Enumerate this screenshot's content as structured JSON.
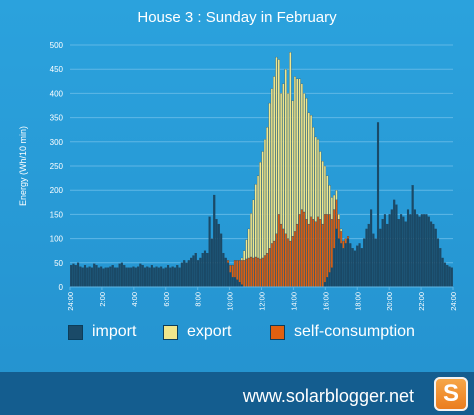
{
  "colors": {
    "background": "#2694d2",
    "import": "#1a4a68",
    "export": "#f0e68c",
    "self_consumption": "#e06010",
    "grid": "#5fb7e6",
    "text": "#ffffff"
  },
  "legend": {
    "import_label": "import",
    "export_label": "export",
    "self_label": "self-consumption"
  },
  "footer": {
    "site": "www.solarblogger.net",
    "logo_letter": "S"
  },
  "chart_data": {
    "type": "bar",
    "stacked": true,
    "title": "House 3 : Sunday  in February",
    "xlabel": "",
    "ylabel": "Energy (Wh/10 min)",
    "ylim": [
      0,
      500
    ],
    "yticks": [
      0,
      50,
      100,
      150,
      200,
      250,
      300,
      350,
      400,
      450,
      500
    ],
    "xticks": [
      "24:00",
      "2:00",
      "4:00",
      "6:00",
      "8:00",
      "10:00",
      "12:00",
      "14:00",
      "16:00",
      "18:00",
      "20:00",
      "22:00",
      "24:00"
    ],
    "grid": true,
    "legend_position": "bottom",
    "interval_minutes": 10,
    "series": [
      {
        "name": "import",
        "values": [
          45,
          48,
          45,
          50,
          42,
          40,
          45,
          40,
          42,
          40,
          48,
          45,
          40,
          42,
          38,
          40,
          40,
          42,
          45,
          40,
          40,
          48,
          50,
          45,
          40,
          40,
          40,
          42,
          40,
          42,
          48,
          45,
          40,
          42,
          40,
          45,
          40,
          42,
          40,
          42,
          38,
          40,
          45,
          40,
          42,
          40,
          45,
          40,
          50,
          55,
          50,
          55,
          60,
          65,
          70,
          55,
          60,
          70,
          75,
          70,
          145,
          100,
          190,
          140,
          130,
          110,
          70,
          60,
          50,
          30,
          20,
          20,
          15,
          10,
          5,
          0,
          0,
          0,
          0,
          0,
          0,
          0,
          0,
          0,
          0,
          0,
          0,
          0,
          0,
          0,
          0,
          0,
          0,
          0,
          0,
          0,
          0,
          0,
          0,
          0,
          0,
          0,
          0,
          0,
          0,
          0,
          0,
          0,
          0,
          0,
          10,
          20,
          30,
          40,
          80,
          120,
          100,
          90,
          80,
          90,
          100,
          90,
          80,
          75,
          85,
          90,
          80,
          100,
          120,
          130,
          160,
          110,
          100,
          340,
          120,
          140,
          150,
          130,
          150,
          160,
          180,
          170,
          140,
          150,
          145,
          135,
          160,
          150,
          210,
          160,
          150,
          145,
          150,
          150,
          150,
          145,
          135,
          130,
          120,
          100,
          80,
          60,
          50,
          45,
          42,
          40
        ]
      },
      {
        "name": "self-consumption",
        "values": [
          0,
          0,
          0,
          0,
          0,
          0,
          0,
          0,
          0,
          0,
          0,
          0,
          0,
          0,
          0,
          0,
          0,
          0,
          0,
          0,
          0,
          0,
          0,
          0,
          0,
          0,
          0,
          0,
          0,
          0,
          0,
          0,
          0,
          0,
          0,
          0,
          0,
          0,
          0,
          0,
          0,
          0,
          0,
          0,
          0,
          0,
          0,
          0,
          0,
          0,
          0,
          0,
          0,
          0,
          0,
          0,
          0,
          0,
          0,
          0,
          0,
          0,
          0,
          0,
          0,
          0,
          0,
          0,
          5,
          15,
          25,
          35,
          40,
          45,
          50,
          55,
          58,
          60,
          62,
          60,
          62,
          60,
          58,
          60,
          65,
          70,
          80,
          90,
          95,
          110,
          150,
          130,
          120,
          110,
          100,
          95,
          105,
          115,
          130,
          150,
          160,
          155,
          140,
          130,
          145,
          140,
          135,
          145,
          140,
          130,
          140,
          130,
          120,
          100,
          80,
          60,
          40,
          25,
          15,
          10,
          5,
          0,
          0,
          0,
          0,
          0,
          0,
          0,
          0,
          0,
          0,
          0,
          0,
          0,
          0,
          0,
          0,
          0,
          0,
          0,
          0,
          0,
          0,
          0,
          0,
          0,
          0,
          0,
          0,
          0,
          0,
          0,
          0,
          0,
          0,
          0,
          0,
          0,
          0,
          0,
          0,
          0,
          0,
          0,
          0,
          0
        ]
      },
      {
        "name": "export",
        "values": [
          0,
          0,
          0,
          0,
          0,
          0,
          0,
          0,
          0,
          0,
          0,
          0,
          0,
          0,
          0,
          0,
          0,
          0,
          0,
          0,
          0,
          0,
          0,
          0,
          0,
          0,
          0,
          0,
          0,
          0,
          0,
          0,
          0,
          0,
          0,
          0,
          0,
          0,
          0,
          0,
          0,
          0,
          0,
          0,
          0,
          0,
          0,
          0,
          0,
          0,
          0,
          0,
          0,
          0,
          0,
          0,
          0,
          0,
          0,
          0,
          0,
          0,
          0,
          0,
          0,
          0,
          0,
          0,
          0,
          0,
          0,
          0,
          0,
          0,
          5,
          20,
          40,
          60,
          90,
          120,
          150,
          170,
          200,
          220,
          240,
          260,
          300,
          320,
          340,
          365,
          320,
          270,
          300,
          340,
          300,
          390,
          280,
          320,
          300,
          280,
          260,
          245,
          250,
          230,
          210,
          190,
          175,
          160,
          140,
          130,
          100,
          80,
          60,
          45,
          30,
          20,
          10,
          5,
          0,
          0,
          0,
          0,
          0,
          0,
          0,
          0,
          0,
          0,
          0,
          0,
          0,
          0,
          0,
          0,
          0,
          0,
          0,
          0,
          0,
          0,
          0,
          0,
          0,
          0,
          0,
          0,
          0,
          0,
          0,
          0,
          0,
          0,
          0,
          0,
          0,
          0,
          0,
          0,
          0,
          0,
          0,
          0,
          0,
          0,
          0,
          0,
          0,
          0,
          0,
          0,
          0,
          0,
          0,
          0,
          0,
          0
        ]
      }
    ]
  }
}
